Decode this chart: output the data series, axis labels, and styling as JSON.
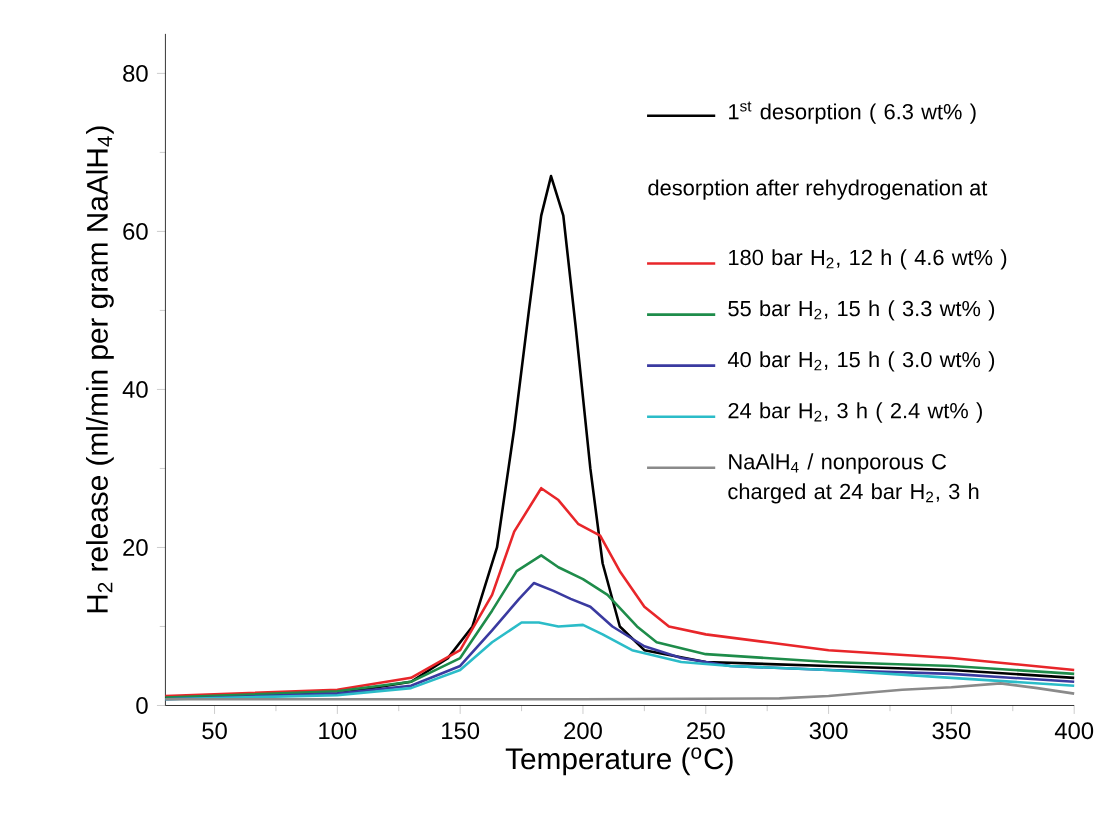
{
  "chart_data": {
    "type": "line",
    "xlabel": "Temperature ($^{o}$C)",
    "ylabel": "H$_{2}$ release (ml/min per gram NaAlH$_{4}$)",
    "xlim": [
      30,
      400
    ],
    "ylim": [
      0,
      85
    ],
    "xticks": [
      50,
      100,
      150,
      200,
      250,
      300,
      350,
      400
    ],
    "yticks": [
      0,
      20,
      40,
      60,
      80
    ],
    "legend": "top right",
    "annotations": [
      "desorption after rehydrogenation at"
    ],
    "series": [
      {
        "name": "1$^{st}$ desorption ( 6.3 wt% )",
        "color": "#000000",
        "x": [
          30,
          100,
          130,
          145,
          155,
          165,
          172,
          178,
          183,
          187,
          192,
          197,
          203,
          208,
          215,
          225,
          250,
          300,
          350,
          400
        ],
        "values": [
          1,
          1.5,
          3,
          6,
          10,
          20,
          35,
          50,
          62,
          67,
          62,
          48,
          30,
          18,
          10,
          7,
          5.5,
          5,
          4.5,
          3.5
        ]
      },
      {
        "name": "180 bar H$_{2}$, 12 h ( 4.6 wt% )",
        "color": "#e8262a",
        "x": [
          30,
          100,
          130,
          150,
          163,
          172,
          183,
          190,
          198,
          207,
          215,
          225,
          235,
          250,
          275,
          300,
          350,
          400
        ],
        "values": [
          1.2,
          2,
          3.5,
          7,
          14,
          22,
          27.5,
          26,
          23,
          21.5,
          17,
          12.5,
          10,
          9,
          8,
          7,
          6,
          4.5
        ]
      },
      {
        "name": "55 bar H$_{2}$, 15 h ( 3.3 wt% )",
        "color": "#1e8c4a",
        "x": [
          30,
          100,
          130,
          150,
          163,
          173,
          183,
          190,
          200,
          210,
          222,
          230,
          250,
          300,
          350,
          400
        ],
        "values": [
          1,
          1.8,
          3,
          6,
          12,
          17,
          19,
          17.5,
          16,
          14,
          10,
          8,
          6.5,
          5.5,
          5,
          4
        ]
      },
      {
        "name": "40 bar H$_{2}$, 15 h ( 3.0 wt% )",
        "color": "#3a3aa0",
        "x": [
          30,
          100,
          130,
          150,
          163,
          174,
          180,
          188,
          195,
          203,
          212,
          225,
          240,
          260,
          300,
          350,
          400
        ],
        "values": [
          0.8,
          1.5,
          2.5,
          5,
          9.5,
          13.5,
          15.5,
          14.5,
          13.5,
          12.5,
          10,
          7.5,
          6,
          5,
          4.5,
          4,
          3
        ]
      },
      {
        "name": "24 bar H$_{2}$, 3 h ( 2.4 wt% )",
        "color": "#2bbcc8",
        "x": [
          30,
          100,
          130,
          150,
          163,
          175,
          182,
          190,
          200,
          208,
          220,
          240,
          260,
          300,
          350,
          400
        ],
        "values": [
          0.8,
          1.3,
          2.2,
          4.5,
          8,
          10.5,
          10.5,
          10,
          10.2,
          9,
          7,
          5.5,
          5,
          4.5,
          3.5,
          2.5
        ]
      },
      {
        "name": "NaAlH$_{4}$ / nonporous C charged at 24 bar H$_{2}$, 3 h",
        "color": "#8a8a8a",
        "x": [
          30,
          100,
          200,
          280,
          300,
          330,
          350,
          370,
          385,
          400
        ],
        "values": [
          0.8,
          0.8,
          0.8,
          0.9,
          1.2,
          2,
          2.3,
          2.8,
          2.2,
          1.5
        ]
      }
    ]
  }
}
